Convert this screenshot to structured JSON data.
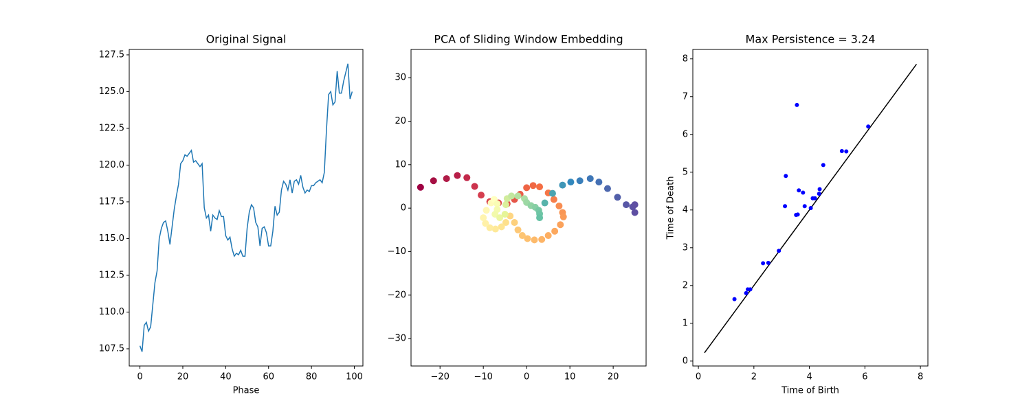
{
  "chart_data": [
    {
      "type": "line",
      "title": "Original Signal",
      "xlabel": "Phase",
      "color": "#1f77b4",
      "x": [
        0,
        1,
        2,
        3,
        4,
        5,
        6,
        7,
        8,
        9,
        10,
        11,
        12,
        13,
        14,
        15,
        16,
        17,
        18,
        19,
        20,
        21,
        22,
        23,
        24,
        25,
        26,
        27,
        28,
        29,
        30,
        31,
        32,
        33,
        34,
        35,
        36,
        37,
        38,
        39,
        40,
        41,
        42,
        43,
        44,
        45,
        46,
        47,
        48,
        49,
        50,
        51,
        52,
        53,
        54,
        55,
        56,
        57,
        58,
        59,
        60,
        61,
        62,
        63,
        64,
        65,
        66,
        67,
        68,
        69,
        70,
        71,
        72,
        73,
        74,
        75,
        76,
        77,
        78,
        79,
        80,
        81,
        82,
        83,
        84,
        85,
        86,
        87,
        88,
        89,
        90,
        91,
        92,
        93,
        94,
        95,
        96,
        97,
        98,
        99
      ],
      "values": [
        107.7,
        107.3,
        109.1,
        109.3,
        108.7,
        109.0,
        110.5,
        112.0,
        112.8,
        115.0,
        115.7,
        116.1,
        116.2,
        115.5,
        114.6,
        115.8,
        117.0,
        117.9,
        118.7,
        120.1,
        120.3,
        120.7,
        120.6,
        120.8,
        121.0,
        120.2,
        120.3,
        120.1,
        119.9,
        120.1,
        117.1,
        116.4,
        116.6,
        115.5,
        116.6,
        116.4,
        116.3,
        116.9,
        116.5,
        116.5,
        115.2,
        114.9,
        115.1,
        114.3,
        113.8,
        114.0,
        113.9,
        114.2,
        113.8,
        113.8,
        115.7,
        116.8,
        117.3,
        117.1,
        116.1,
        115.8,
        114.5,
        115.7,
        115.8,
        115.4,
        114.5,
        114.5,
        115.5,
        117.2,
        116.6,
        116.8,
        118.3,
        118.9,
        118.7,
        118.3,
        119.0,
        118.1,
        118.9,
        119.0,
        118.7,
        119.3,
        118.5,
        118.1,
        118.3,
        118.2,
        118.6,
        118.6,
        118.8,
        118.9,
        119.0,
        118.8,
        119.5,
        122.4,
        124.8,
        125.0,
        124.1,
        124.3,
        126.4,
        124.9,
        124.9,
        125.7,
        126.3,
        126.9,
        124.5,
        125.0
      ],
      "xlim": [
        -5,
        104
      ],
      "ylim": [
        106.33,
        127.87
      ],
      "xticks": [
        0,
        20,
        40,
        60,
        80,
        100
      ],
      "yticks": [
        107.5,
        {
          "value": 110,
          "label": "110.0"
        },
        112.5,
        {
          "value": 115,
          "label": "115.0"
        },
        117.5,
        {
          "value": 120,
          "label": "120.0"
        },
        122.5,
        {
          "value": 125,
          "label": "125.0"
        },
        127.5
      ]
    },
    {
      "type": "scatter",
      "title": "PCA of Sliding Window Embedding",
      "x": [
        -24.5,
        -21.5,
        -18.5,
        -16,
        -13.8,
        -12,
        -10.5,
        -8.5,
        -6.5,
        -4.5,
        -2.8,
        -1.5,
        0,
        1.5,
        3,
        5,
        6.3,
        7.5,
        8.3,
        8.5,
        7.8,
        6.5,
        5,
        3.5,
        1.8,
        0.2,
        -1,
        -2,
        -2.8,
        -3.8,
        -4.8,
        -5.8,
        -7.2,
        -8.5,
        -9.5,
        -10,
        -9.3,
        -8.2,
        -7.5,
        -6.8,
        -6.8,
        -7.3,
        -6.2,
        -5,
        -4.8,
        -4.5,
        -3.5,
        -2,
        -0.5,
        0,
        1,
        2,
        2.8,
        3,
        3,
        4.2,
        6,
        8.3,
        10.2,
        12.3,
        14.7,
        16.7,
        18.7,
        21,
        23,
        24.5,
        25,
        25
      ],
      "values": [
        4.8,
        6.3,
        6.8,
        7.5,
        7,
        5,
        3,
        1.5,
        1.2,
        1,
        2,
        3.2,
        4.7,
        5.2,
        4.9,
        3.5,
        2,
        0.5,
        -1,
        -2,
        -3.8,
        -5.3,
        -6.3,
        -7.2,
        -7.3,
        -7,
        -6.3,
        -5,
        -3.3,
        -1.8,
        -3.3,
        -4.3,
        -4.8,
        -4.5,
        -3.5,
        -2.2,
        -0.5,
        1.2,
        2,
        1,
        -0.3,
        -1.4,
        -2.2,
        -1.4,
        0.8,
        2.2,
        2.8,
        2.8,
        2.2,
        1.3,
        0.6,
        0.2,
        -0.5,
        -1.3,
        -2.2,
        1.2,
        3.4,
        5.3,
        6,
        6.3,
        6.8,
        6,
        4.5,
        2.5,
        0.8,
        0.3,
        0.8,
        -1
      ],
      "colors": [
        "#9e0142",
        "#a50f43",
        "#b01b47",
        "#b81e48",
        "#c2294a",
        "#cc334d",
        "#d53e4f",
        "#d8434e",
        "#dd4a4c",
        "#e0504a",
        "#e55649",
        "#ea5d47",
        "#ee6445",
        "#f06844",
        "#f46d43",
        "#f57647",
        "#f67e4b",
        "#f88d52",
        "#f99655",
        "#fa9b58",
        "#fba25b",
        "#fca85e",
        "#fdae61",
        "#fdb466",
        "#fdba6b",
        "#fdc070",
        "#fdc574",
        "#fdc877",
        "#fdd07d",
        "#fed683",
        "#fee08b",
        "#fee593",
        "#fee999",
        "#feec9f",
        "#fff1a8",
        "#fff4ae",
        "#fff7b4",
        "#fffab9",
        "#ffffbf",
        "#f9fcb5",
        "#f5faae",
        "#f2faac",
        "#ecf7a2",
        "#e6f598",
        "#dbf09b",
        "#d1ec9c",
        "#c3e79f",
        "#b5e1a1",
        "#abdda4",
        "#9dd8a4",
        "#91d3a4",
        "#87cfa4",
        "#77c8a4",
        "#6ec5a5",
        "#66c2a5",
        "#58b3ab",
        "#4ba4b1",
        "#3f96b7",
        "#3288bd",
        "#3a7fba",
        "#3f77b7",
        "#4470b4",
        "#4d68ae",
        "#525fa9",
        "#5857a6",
        "#5b52a4",
        "#5e4fa2",
        "#5e4fa2"
      ],
      "xlim": [
        -26.7,
        27.6
      ],
      "ylim": [
        -36.3,
        36.5
      ],
      "xticks": [
        {
          "value": -20,
          "label": "−20"
        },
        {
          "value": -10,
          "label": "−10"
        },
        0,
        10,
        20
      ],
      "yticks": [
        {
          "value": -30,
          "label": "−30"
        },
        {
          "value": -20,
          "label": "−20"
        },
        {
          "value": -10,
          "label": "−10"
        },
        0,
        10,
        20,
        30
      ]
    },
    {
      "type": "scatter",
      "title": "Max Persistence = 3.24",
      "xlabel": "Time of Birth",
      "ylabel": "Time of Death",
      "color": "#0000ff",
      "x": [
        1.3,
        1.72,
        1.78,
        1.87,
        2.33,
        2.52,
        2.9,
        3.12,
        3.15,
        3.52,
        3.58,
        3.55,
        3.62,
        3.77,
        3.83,
        4.05,
        4.12,
        4.2,
        4.35,
        4.37,
        4.5,
        5.17,
        5.33,
        6.12
      ],
      "values": [
        1.64,
        1.8,
        1.9,
        1.9,
        2.59,
        2.6,
        2.92,
        4.1,
        4.9,
        3.87,
        3.88,
        6.78,
        4.52,
        4.46,
        4.1,
        4.05,
        4.31,
        4.31,
        4.43,
        4.55,
        5.19,
        5.56,
        5.55,
        6.21
      ],
      "reference_line": {
        "x": [
          0.22,
          7.86
        ],
        "values": [
          0.22,
          7.86
        ],
        "color": "#000000"
      },
      "xlim": [
        -0.2,
        8.27
      ],
      "ylim": [
        -0.13,
        8.25
      ],
      "xticks": [
        0,
        2,
        4,
        6,
        8
      ],
      "yticks": [
        0,
        1,
        2,
        3,
        4,
        5,
        6,
        7,
        8
      ]
    }
  ]
}
